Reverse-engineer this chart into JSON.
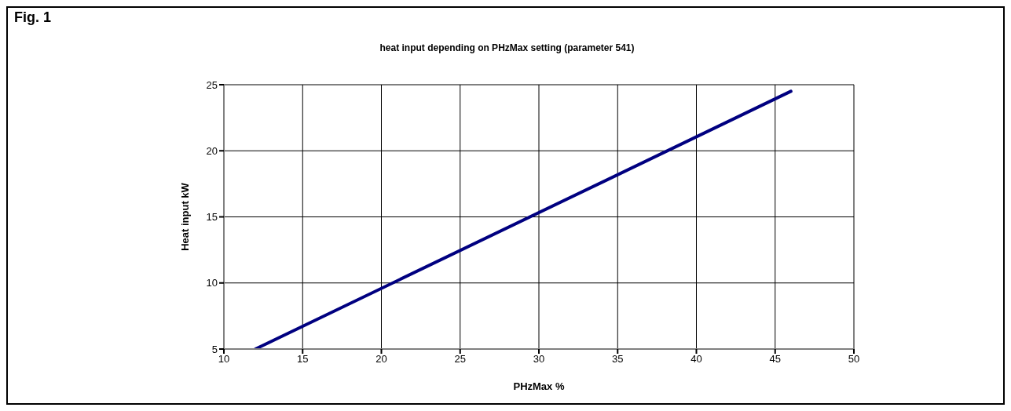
{
  "chart_data": {
    "type": "line",
    "title": "heat input depending on PHzMax setting (parameter 541)",
    "xlabel": "PHzMax %",
    "ylabel": "Heat input kW",
    "annotations": [
      "Fig. 1"
    ],
    "x": [
      12,
      46
    ],
    "series": [
      {
        "color": "#000080",
        "values": [
          5,
          24.5
        ]
      }
    ],
    "xlim": [
      10,
      50
    ],
    "xticks": [
      10,
      15,
      20,
      25,
      30,
      35,
      40,
      45,
      50
    ],
    "ylim": [
      5,
      25
    ],
    "yticks": [
      5,
      10,
      15,
      20,
      25
    ],
    "grid": true,
    "marker": "none",
    "line_style": "solid",
    "legend": false
  }
}
